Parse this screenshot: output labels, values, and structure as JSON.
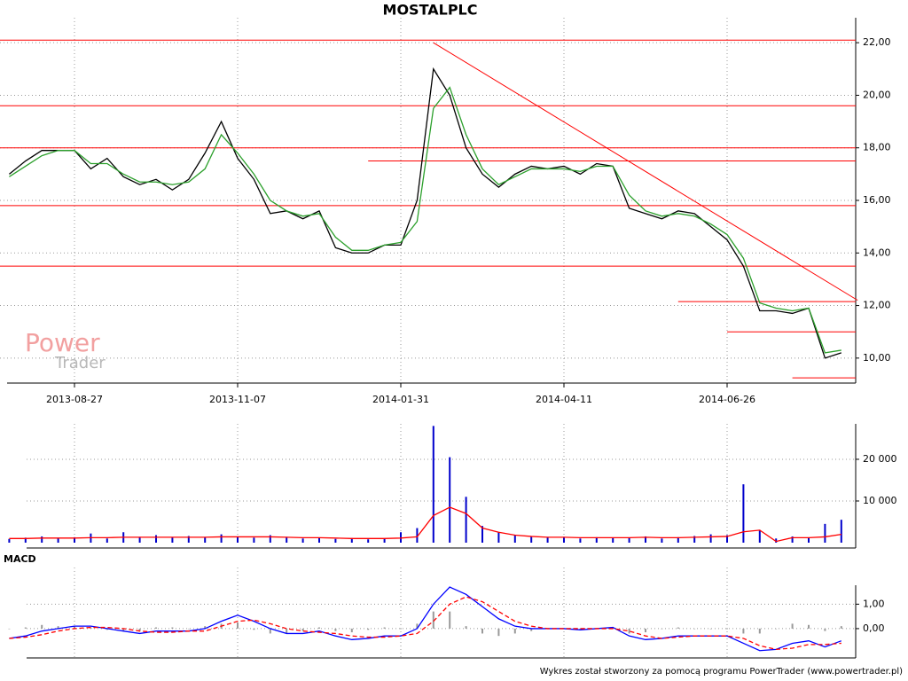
{
  "chart_data": [
    {
      "type": "line",
      "title": "MOSTALPLC",
      "categories": [
        null,
        null,
        null,
        null,
        "2013-08-27",
        null,
        null,
        null,
        null,
        null,
        null,
        null,
        null,
        null,
        "2013-11-07",
        null,
        null,
        null,
        null,
        null,
        null,
        null,
        null,
        null,
        "2014-01-31",
        null,
        null,
        null,
        null,
        null,
        null,
        null,
        null,
        null,
        "2014-04-11",
        null,
        null,
        null,
        null,
        null,
        null,
        null,
        null,
        null,
        "2014-06-26",
        null,
        null,
        null,
        null,
        null,
        null,
        null
      ],
      "series": [
        {
          "name": "close",
          "type": "line",
          "color": "#000000",
          "values": [
            17.0,
            17.5,
            17.9,
            17.9,
            17.9,
            17.2,
            17.6,
            16.9,
            16.6,
            16.8,
            16.4,
            16.8,
            17.8,
            19.0,
            17.6,
            16.8,
            15.5,
            15.6,
            15.3,
            15.6,
            14.2,
            14.0,
            14.0,
            14.3,
            14.3,
            16.0,
            21.0,
            20.0,
            18.0,
            17.0,
            16.5,
            17.0,
            17.3,
            17.2,
            17.3,
            17.0,
            17.4,
            17.3,
            15.7,
            15.5,
            15.3,
            15.6,
            15.5,
            15.0,
            14.5,
            13.5,
            11.8,
            11.8,
            11.7,
            11.9,
            10.0,
            10.2
          ]
        },
        {
          "name": "ma",
          "type": "line",
          "color": "#2ca02c",
          "values": [
            16.9,
            17.3,
            17.7,
            17.9,
            17.9,
            17.4,
            17.4,
            17.0,
            16.7,
            16.7,
            16.6,
            16.7,
            17.2,
            18.5,
            17.8,
            17.0,
            16.0,
            15.6,
            15.4,
            15.5,
            14.6,
            14.1,
            14.1,
            14.3,
            14.4,
            15.2,
            19.5,
            20.3,
            18.5,
            17.2,
            16.6,
            16.9,
            17.2,
            17.2,
            17.2,
            17.1,
            17.3,
            17.3,
            16.2,
            15.6,
            15.4,
            15.5,
            15.4,
            15.1,
            14.7,
            13.8,
            12.1,
            11.9,
            11.8,
            11.9,
            10.2,
            10.3
          ]
        }
      ],
      "levels": [
        {
          "value": 22.1
        },
        {
          "value": 19.6
        },
        {
          "value": 18.0
        },
        {
          "value": 17.5,
          "start": 22
        },
        {
          "value": 15.8
        },
        {
          "value": 13.5
        },
        {
          "value": 12.15,
          "start": 41
        },
        {
          "value": 11.0,
          "start": 44
        },
        {
          "value": 9.25,
          "start": 48
        }
      ],
      "trendline": {
        "x": [
          26,
          52
        ],
        "y": [
          22.0,
          12.2
        ],
        "color": "#ff0000"
      },
      "level_color": "#ff0000",
      "ylim": [
        9.05,
        22.95
      ],
      "yticks": [
        {
          "value": 10,
          "label": "10,00"
        },
        {
          "value": 12,
          "label": "12,00"
        },
        {
          "value": 14,
          "label": "14,00"
        },
        {
          "value": 16,
          "label": "16,00"
        },
        {
          "value": 18,
          "label": "18,00"
        },
        {
          "value": 20,
          "label": "20,00"
        },
        {
          "value": 22,
          "label": "22,00"
        }
      ],
      "grid": true
    },
    {
      "type": "bar",
      "series": [
        {
          "name": "volume",
          "type": "bar",
          "color": "#0000cc",
          "values": [
            900,
            1200,
            1500,
            1100,
            1300,
            2200,
            1000,
            2500,
            1400,
            1800,
            1200,
            1600,
            1300,
            2000,
            1500,
            1200,
            1800,
            1400,
            1000,
            1200,
            900,
            1100,
            800,
            1000,
            2500,
            3500,
            28000,
            20500,
            11000,
            4000,
            2500,
            1800,
            1500,
            1200,
            1400,
            1000,
            1300,
            1100,
            1200,
            1500,
            1000,
            1300,
            1600,
            2000,
            1800,
            14000,
            3000,
            1000,
            1500,
            1200,
            4500,
            5500
          ]
        },
        {
          "name": "volume-ma",
          "type": "line",
          "color": "#ff0000",
          "values": [
            1000,
            1000,
            1100,
            1100,
            1100,
            1200,
            1200,
            1300,
            1300,
            1300,
            1300,
            1300,
            1300,
            1400,
            1400,
            1400,
            1400,
            1300,
            1200,
            1200,
            1100,
            1000,
            1000,
            1000,
            1100,
            1400,
            6500,
            8500,
            7000,
            3500,
            2500,
            1800,
            1500,
            1300,
            1300,
            1200,
            1200,
            1200,
            1200,
            1300,
            1200,
            1200,
            1300,
            1400,
            1500,
            2600,
            3000,
            300,
            1200,
            1200,
            1400,
            2000
          ]
        }
      ],
      "ylim": [
        0,
        28500
      ],
      "yticks": [
        {
          "value": 10000,
          "label": "10 000"
        },
        {
          "value": 20000,
          "label": "20 000"
        }
      ],
      "grid": true
    },
    {
      "type": "line",
      "title": "MACD",
      "series": [
        {
          "name": "histogram",
          "type": "bar",
          "color": "#999999",
          "values": [
            0,
            0.05,
            0.15,
            0.1,
            0.1,
            0.05,
            -0.05,
            -0.1,
            -0.1,
            0.05,
            0.05,
            0,
            0.1,
            0.2,
            0.25,
            -0.05,
            -0.2,
            -0.2,
            -0.1,
            0.05,
            -0.1,
            -0.15,
            -0.05,
            0.05,
            0,
            0.2,
            0.7,
            0.7,
            0.1,
            -0.2,
            -0.3,
            -0.2,
            -0.1,
            0,
            0,
            -0.05,
            0,
            0.05,
            -0.2,
            -0.15,
            0,
            0.05,
            0,
            0,
            0,
            -0.2,
            -0.2,
            0,
            0.2,
            0.15,
            -0.1,
            0.1
          ]
        },
        {
          "name": "macd",
          "type": "line",
          "color": "#0000ff",
          "values": [
            -0.4,
            -0.3,
            -0.1,
            0.0,
            0.1,
            0.1,
            0.0,
            -0.1,
            -0.2,
            -0.1,
            -0.1,
            -0.1,
            0.0,
            0.3,
            0.55,
            0.3,
            0.0,
            -0.2,
            -0.2,
            -0.1,
            -0.3,
            -0.45,
            -0.4,
            -0.3,
            -0.3,
            0.0,
            1.0,
            1.7,
            1.4,
            0.9,
            0.4,
            0.1,
            0.0,
            0.0,
            0.0,
            -0.05,
            0.0,
            0.05,
            -0.3,
            -0.45,
            -0.4,
            -0.3,
            -0.3,
            -0.3,
            -0.3,
            -0.6,
            -0.9,
            -0.85,
            -0.6,
            -0.5,
            -0.75,
            -0.5
          ]
        },
        {
          "name": "signal",
          "type": "line",
          "dashed": true,
          "color": "#ff0000",
          "values": [
            -0.4,
            -0.35,
            -0.25,
            -0.1,
            0.0,
            0.05,
            0.05,
            0.0,
            -0.1,
            -0.15,
            -0.15,
            -0.1,
            -0.1,
            0.1,
            0.3,
            0.35,
            0.2,
            0.0,
            -0.1,
            -0.15,
            -0.2,
            -0.3,
            -0.35,
            -0.35,
            -0.3,
            -0.2,
            0.3,
            1.0,
            1.3,
            1.1,
            0.7,
            0.3,
            0.1,
            0.0,
            0.0,
            0.0,
            0.0,
            0.0,
            -0.1,
            -0.3,
            -0.4,
            -0.35,
            -0.3,
            -0.3,
            -0.3,
            -0.4,
            -0.7,
            -0.85,
            -0.8,
            -0.65,
            -0.65,
            -0.6
          ]
        }
      ],
      "ylim": [
        -1.2,
        2.5
      ],
      "yticks": [
        {
          "value": 0,
          "label": "0,00"
        },
        {
          "value": 1,
          "label": "1,00"
        }
      ],
      "grid": true
    }
  ],
  "watermark": {
    "line1": "Power",
    "line2": "Trader"
  },
  "footer": "Wykres został stworzony za pomocą programu PowerTrader (www.powertrader.pl)"
}
